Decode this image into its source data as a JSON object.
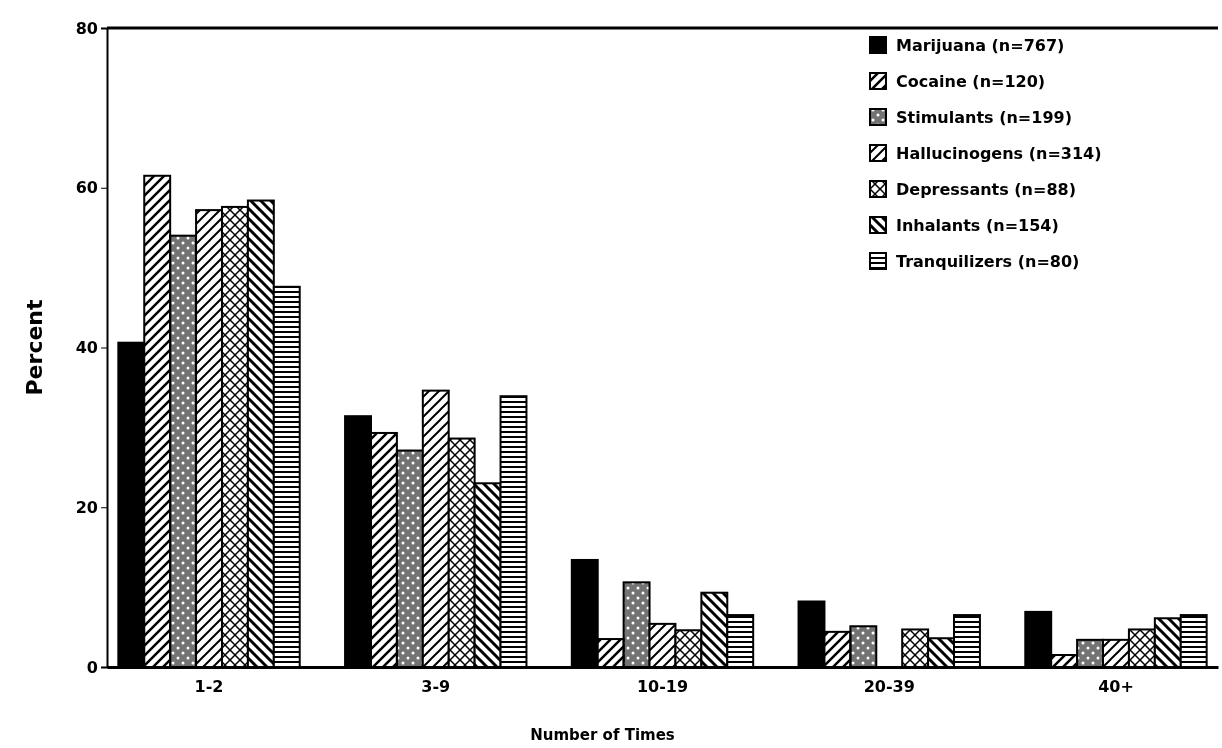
{
  "chart_data": {
    "type": "bar",
    "xlabel": "Number of Times",
    "ylabel": "Percent",
    "categories": [
      "1-2",
      "3-9",
      "10-19",
      "20-39",
      "40+"
    ],
    "ylim": [
      0,
      80
    ],
    "yticks": [
      0,
      20,
      40,
      60,
      80
    ],
    "legend": "top right",
    "series": [
      {
        "name": "Marijuana (n=767)",
        "color": "#000000",
        "values": [
          40.6,
          31.4,
          13.4,
          8.2,
          6.9
        ]
      },
      {
        "name": "Cocaine (n=120)",
        "color": "#000000",
        "values": [
          61.5,
          29.3,
          3.5,
          4.4,
          1.5
        ]
      },
      {
        "name": "Stimulants (n=199)",
        "color": "#000000",
        "values": [
          54,
          27.1,
          10.6,
          5.1,
          3.4
        ]
      },
      {
        "name": "Hallucinogens (n=314)",
        "color": "#000000",
        "values": [
          57.2,
          34.6,
          5.4,
          0,
          3.4
        ]
      },
      {
        "name": "Depressants (n=88)",
        "color": "#000000",
        "values": [
          57.6,
          28.6,
          4.6,
          4.7,
          4.7
        ]
      },
      {
        "name": "Inhalants (n=154)",
        "color": "#000000",
        "values": [
          58.4,
          23,
          9.3,
          3.6,
          6.1
        ]
      },
      {
        "name": "Tranquilizers (n=80)",
        "color": "#000000",
        "values": [
          47.6,
          33.9,
          6.5,
          6.5,
          6.5
        ]
      }
    ]
  }
}
